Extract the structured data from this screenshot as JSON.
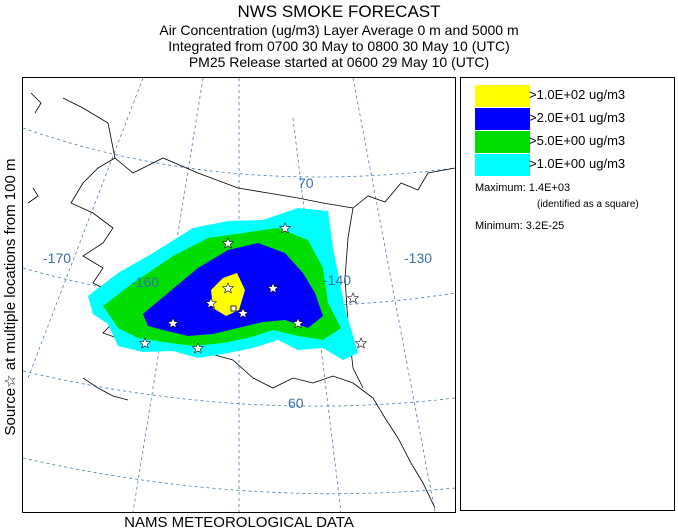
{
  "header": {
    "title": "NWS SMOKE FORECAST",
    "line1": "Air Concentration (ug/m3) Layer Average    0 m and  5000 m",
    "line2": "Integrated from 0700 30 May to 0800 30 May 10 (UTC)",
    "line3": "PM25 Release started at 0600 29 May 10 (UTC)"
  },
  "side_label": "Source☆ at multiple locations from   100 m",
  "footer": "NAMS METEOROLOGICAL DATA",
  "map": {
    "lon_labels": [
      "-170",
      "-160",
      "-140",
      "-130"
    ],
    "lat_labels": [
      "70",
      "60"
    ],
    "colors": {
      "land": "#ffffff",
      "coast": "#000000",
      "grid": "#4a7fb5",
      "label": "#3a6ea8"
    }
  },
  "legend": {
    "items": [
      {
        "label": ">1.0E+02 ug/m3",
        "color": "#ffff00"
      },
      {
        "label": ">2.0E+01 ug/m3",
        "color": "#0000ff"
      },
      {
        "label": ">5.0E+00 ug/m3",
        "color": "#00dd00"
      },
      {
        "label": ">1.0E+00 ug/m3",
        "color": "#00ffff"
      }
    ],
    "maximum": "Maximum: 1.4E+03",
    "maximum_note": "(identified as a square)",
    "minimum": "Minimum: 3.2E-25"
  }
}
